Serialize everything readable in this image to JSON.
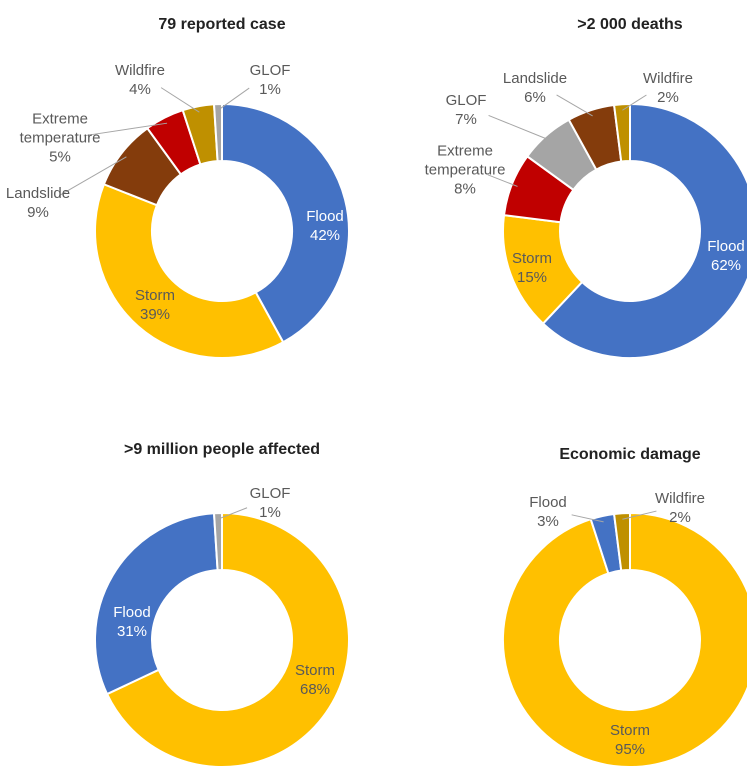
{
  "chart_data": [
    {
      "type": "pie",
      "title": "79 reported case",
      "categories": [
        "Flood",
        "Storm",
        "Landslide",
        "Extreme temperature",
        "Wildfire",
        "GLOF"
      ],
      "values": [
        42,
        39,
        9,
        5,
        4,
        1
      ],
      "value_labels": [
        "42%",
        "39%",
        "9%",
        "5%",
        "4%",
        "1%"
      ],
      "colors": [
        "#4472c4",
        "#ffc000",
        "#843c0c",
        "#c00000",
        "#bf9000",
        "#a5a5a5"
      ]
    },
    {
      "type": "pie",
      "title": ">2 000 deaths",
      "categories": [
        "Flood",
        "Storm",
        "Extreme temperature",
        "GLOF",
        "Landslide",
        "Wildfire"
      ],
      "values": [
        62,
        15,
        8,
        7,
        6,
        2
      ],
      "value_labels": [
        "62%",
        "15%",
        "8%",
        "7%",
        "6%",
        "2%"
      ],
      "colors": [
        "#4472c4",
        "#ffc000",
        "#c00000",
        "#a5a5a5",
        "#843c0c",
        "#bf9000"
      ]
    },
    {
      "type": "pie",
      "title": ">9 million people affected",
      "categories": [
        "Storm",
        "Flood",
        "GLOF"
      ],
      "values": [
        68,
        31,
        1
      ],
      "value_labels": [
        "68%",
        "31%",
        "1%"
      ],
      "colors": [
        "#ffc000",
        "#4472c4",
        "#a5a5a5"
      ]
    },
    {
      "type": "pie",
      "title": "Economic damage",
      "categories": [
        "Storm",
        "Flood",
        "Wildfire"
      ],
      "values": [
        95,
        3,
        2
      ],
      "value_labels": [
        "95%",
        "3%",
        "2%"
      ],
      "colors": [
        "#ffc000",
        "#4472c4",
        "#bf9000"
      ]
    }
  ]
}
